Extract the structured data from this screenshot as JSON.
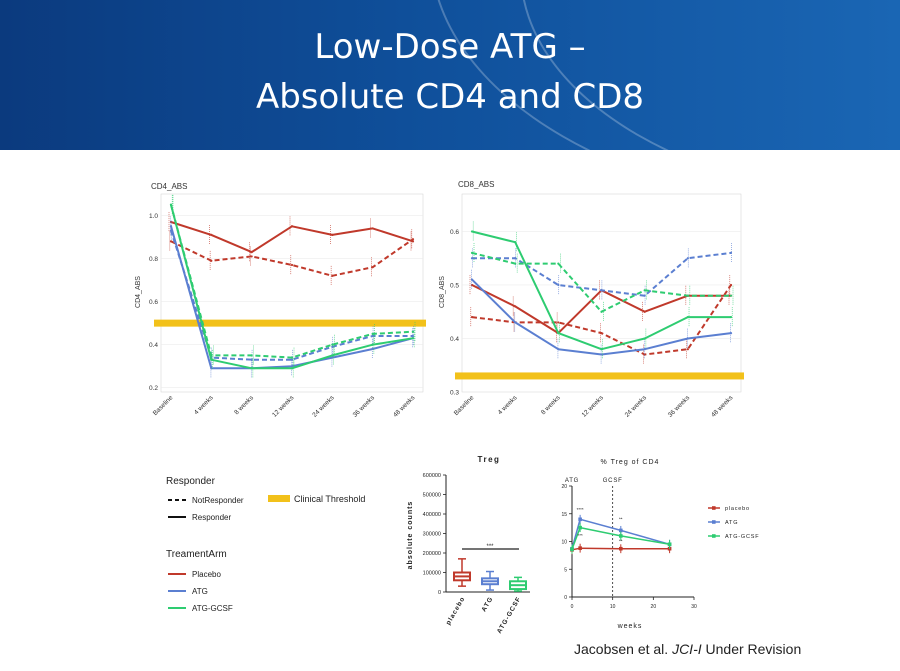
{
  "slide": {
    "title_line1": "Low-Dose ATG –",
    "title_line2": "Absolute CD4 and CD8",
    "citation_prefix": "Jacobsen et al.",
    "citation_journal": "JCI-I",
    "citation_suffix": "Under Revision"
  },
  "legend": {
    "responder_title": "Responder",
    "not_responder": "NotResponder",
    "responder": "Responder",
    "arm_title": "TreamentArm",
    "placebo": "Placebo",
    "atg": "ATG",
    "atg_gcsf": "ATG-GCSF",
    "threshold": "Clinical Threshold"
  },
  "colors": {
    "placebo": "#c0392b",
    "atg": "#5b7fd1",
    "atg_gcsf": "#2ecc71",
    "threshold": "#f2c11a"
  },
  "chart_data": [
    {
      "type": "line",
      "title": "CD4_ABS",
      "ylabel": "CD4_ABS",
      "ylim": [
        0.18,
        1.1
      ],
      "yticks": [
        "0.2",
        "0.4",
        "0.6",
        "0.8",
        "1.0"
      ],
      "ytick_values": [
        0.2,
        0.4,
        0.6,
        0.8,
        1.0
      ],
      "categories": [
        "Baseline",
        "4 weeks",
        "8 weeks",
        "12 weeks",
        "24 weeks",
        "36 weeks",
        "48 weeks"
      ],
      "threshold": 0.5,
      "series": [
        {
          "name": "Placebo Responder",
          "arm": "placebo",
          "dashed": false,
          "values": [
            0.97,
            0.91,
            0.83,
            0.95,
            0.91,
            0.94,
            0.88
          ]
        },
        {
          "name": "Placebo NotResponder",
          "arm": "placebo",
          "dashed": true,
          "values": [
            0.88,
            0.79,
            0.81,
            0.77,
            0.72,
            0.76,
            0.89
          ]
        },
        {
          "name": "ATG Responder",
          "arm": "atg",
          "dashed": false,
          "values": [
            0.95,
            0.29,
            0.29,
            0.3,
            0.34,
            0.38,
            0.43
          ]
        },
        {
          "name": "ATG NotResponder",
          "arm": "atg",
          "dashed": true,
          "values": [
            0.93,
            0.34,
            0.33,
            0.33,
            0.39,
            0.44,
            0.44
          ]
        },
        {
          "name": "ATG-GCSF Responder",
          "arm": "atg_gcsf",
          "dashed": false,
          "values": [
            1.05,
            0.33,
            0.29,
            0.29,
            0.35,
            0.4,
            0.43
          ]
        },
        {
          "name": "ATG-GCSF NotResponder",
          "arm": "atg_gcsf",
          "dashed": true,
          "values": [
            1.05,
            0.35,
            0.35,
            0.34,
            0.4,
            0.45,
            0.46
          ]
        }
      ]
    },
    {
      "type": "line",
      "title": "CD8_ABS",
      "ylabel": "CD8_ABS",
      "ylim": [
        0.3,
        0.67
      ],
      "yticks": [
        "0.3",
        "0.4",
        "0.5",
        "0.6"
      ],
      "ytick_values": [
        0.3,
        0.4,
        0.5,
        0.6
      ],
      "categories": [
        "Baseline",
        "4 weeks",
        "8 weeks",
        "12 weeks",
        "24 weeks",
        "36 weeks",
        "48 weeks"
      ],
      "threshold": 0.33,
      "series": [
        {
          "name": "Placebo Responder",
          "arm": "placebo",
          "dashed": false,
          "values": [
            0.5,
            0.46,
            0.41,
            0.49,
            0.45,
            0.48,
            0.48
          ]
        },
        {
          "name": "Placebo NotResponder",
          "arm": "placebo",
          "dashed": true,
          "values": [
            0.44,
            0.43,
            0.43,
            0.41,
            0.37,
            0.38,
            0.5
          ]
        },
        {
          "name": "ATG Responder",
          "arm": "atg",
          "dashed": false,
          "values": [
            0.51,
            0.43,
            0.38,
            0.37,
            0.38,
            0.4,
            0.41
          ]
        },
        {
          "name": "ATG NotResponder",
          "arm": "atg",
          "dashed": true,
          "values": [
            0.55,
            0.55,
            0.5,
            0.49,
            0.48,
            0.55,
            0.56
          ]
        },
        {
          "name": "ATG-GCSF Responder",
          "arm": "atg_gcsf",
          "dashed": false,
          "values": [
            0.6,
            0.58,
            0.41,
            0.38,
            0.4,
            0.44,
            0.44
          ]
        },
        {
          "name": "ATG-GCSF NotResponder",
          "arm": "atg_gcsf",
          "dashed": true,
          "values": [
            0.56,
            0.54,
            0.54,
            0.45,
            0.49,
            0.48,
            0.48
          ]
        }
      ]
    },
    {
      "type": "box",
      "title": "Treg",
      "ylabel": "absolute counts",
      "ylim": [
        0,
        600000
      ],
      "yticks": [
        "0",
        "100000",
        "200000",
        "300000",
        "400000",
        "500000",
        "600000"
      ],
      "ytick_values": [
        0,
        100000,
        200000,
        300000,
        400000,
        500000,
        600000
      ],
      "categories": [
        "placebo",
        "ATG",
        "ATG-GCSF"
      ],
      "significance": "***",
      "boxes": [
        {
          "name": "placebo",
          "arm": "placebo",
          "min": 30000,
          "q1": 60000,
          "median": 80000,
          "q3": 100000,
          "max": 170000
        },
        {
          "name": "ATG",
          "arm": "atg",
          "min": 10000,
          "q1": 40000,
          "median": 55000,
          "q3": 70000,
          "max": 105000
        },
        {
          "name": "ATG-GCSF",
          "arm": "atg_gcsf",
          "min": 5000,
          "q1": 15000,
          "median": 35000,
          "q3": 55000,
          "max": 75000
        }
      ]
    },
    {
      "type": "line",
      "title": "% Treg of CD4",
      "xlabel": "weeks",
      "xlim": [
        0,
        30
      ],
      "ylim": [
        0,
        20
      ],
      "xticks": [
        "0",
        "10",
        "20",
        "30"
      ],
      "xtick_values": [
        0,
        10,
        20,
        30
      ],
      "yticks": [
        "0",
        "5",
        "10",
        "15",
        "20"
      ],
      "ytick_values": [
        0,
        5,
        10,
        15,
        20
      ],
      "markers": [
        {
          "label": "ATG",
          "x": 0
        },
        {
          "label": "GCSF",
          "x": 10
        }
      ],
      "annotations": [
        "****",
        "***",
        "**",
        "**"
      ],
      "series": [
        {
          "name": "placebo",
          "arm": "placebo",
          "x": [
            0,
            2,
            12,
            24
          ],
          "values": [
            8.5,
            8.8,
            8.7,
            8.7
          ]
        },
        {
          "name": "ATG",
          "arm": "atg",
          "x": [
            0,
            2,
            12,
            24
          ],
          "values": [
            8.7,
            14,
            12,
            9.5
          ]
        },
        {
          "name": "ATG-GCSF",
          "arm": "atg_gcsf",
          "x": [
            0,
            2,
            12,
            24
          ],
          "values": [
            8.6,
            12.5,
            11,
            9.5
          ]
        }
      ]
    }
  ]
}
